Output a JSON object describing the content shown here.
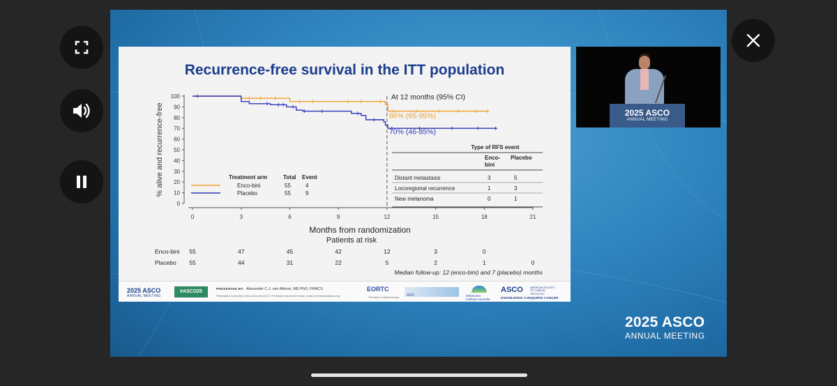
{
  "slide": {
    "title": "Recurrence-free survival in the ITT population",
    "footer": {
      "asco_year": "2025 ASCO",
      "asco_sub": "ANNUAL MEETING",
      "hashtag": "#ASCO25",
      "presented_by_label": "PRESENTED BY:",
      "presenter": "Alexander C.J. van Akkooi, MD PhD, FRACS",
      "note": "Presentation is property of the author and ASCO. Permission required for reuse; contact permissions@asco.org",
      "eortc": "EORTC",
      "eortc_sub": "The future of cancer therapy",
      "ado": "ADO",
      "mia_line1": "Melanoma",
      "mia_line2": "Institute Australia",
      "asco2": "ASCO",
      "asco2_side": "AMERICAN SOCIETY OF CLINICAL ONCOLOGY",
      "asco2_tag": "KNOWLEDGE CONQUERS CANCER"
    }
  },
  "chart_data": {
    "type": "line",
    "title": "Recurrence-free survival in the ITT population",
    "xlabel": "Months from randomization",
    "ylabel": "% alive and recurrence-free",
    "xlim": [
      0,
      21
    ],
    "ylim": [
      0,
      100
    ],
    "x_ticks": [
      0,
      3,
      6,
      9,
      12,
      15,
      18,
      21
    ],
    "y_ticks": [
      0,
      10,
      20,
      30,
      40,
      50,
      60,
      70,
      80,
      90,
      100
    ],
    "reference_line_x": 12,
    "series": [
      {
        "name": "Enco-bini",
        "color": "#f0a12b",
        "points": [
          [
            0,
            100
          ],
          [
            2.9,
            100
          ],
          [
            3,
            98
          ],
          [
            5.9,
            98
          ],
          [
            6,
            95
          ],
          [
            11.8,
            95
          ],
          [
            11.9,
            92
          ],
          [
            12.05,
            86
          ],
          [
            18.3,
            86
          ]
        ],
        "censor_x": [
          3.5,
          4.2,
          5.1,
          6.6,
          7.4,
          9.6,
          10.4,
          11.6,
          12.4,
          13.8,
          15.2,
          16.4,
          17.5,
          18.2
        ]
      },
      {
        "name": "Placebo",
        "color": "#2e36b8",
        "points": [
          [
            0,
            100
          ],
          [
            2.9,
            100
          ],
          [
            3,
            95
          ],
          [
            3.5,
            93
          ],
          [
            4.8,
            92
          ],
          [
            5.8,
            90
          ],
          [
            6.4,
            87
          ],
          [
            6.8,
            86
          ],
          [
            9.8,
            84
          ],
          [
            10.4,
            82
          ],
          [
            10.7,
            78
          ],
          [
            11.8,
            76
          ],
          [
            11.9,
            73
          ],
          [
            12.05,
            70
          ],
          [
            18.8,
            70
          ]
        ],
        "censor_x": [
          0.3,
          4.6,
          5.3,
          5.6,
          6.2,
          6.9,
          8.0,
          10.2,
          11.2,
          12.3,
          14.0,
          16.0,
          17.6,
          18.7
        ]
      }
    ],
    "annotations": {
      "heading": "At 12 months (95% CI)",
      "enco": "86% (65-95%)",
      "placebo": "70% (46-85%)"
    },
    "legend": {
      "headers": [
        "Treatment arm",
        "Total",
        "Event"
      ],
      "rows": [
        {
          "arm": "Enco-bini",
          "total": "55",
          "event": "4"
        },
        {
          "arm": "Placebo",
          "total": "55",
          "event": "9"
        }
      ]
    },
    "events_table": {
      "title": "Type of RFS event",
      "col1_a": "Enco-",
      "col1_b": "bini",
      "col2": "Placebo",
      "rows": [
        {
          "type": "Distant metastasis",
          "enco": "3",
          "placebo": "5"
        },
        {
          "type": "Locoregional recurrence",
          "enco": "1",
          "placebo": "3"
        },
        {
          "type": "New melanoma",
          "enco": "0",
          "placebo": "1"
        }
      ]
    },
    "at_risk": {
      "title": "Patients at risk",
      "rows": [
        {
          "label": "Enco-bini",
          "values": [
            "55",
            "47",
            "45",
            "42",
            "12",
            "3",
            "0",
            ""
          ]
        },
        {
          "label": "Placebo",
          "values": [
            "55",
            "44",
            "31",
            "22",
            "5",
            "2",
            "1",
            "0"
          ]
        }
      ]
    },
    "followup_note": "Median follow-up: 12 (enco-bini) and 7 (placebo) months"
  },
  "speaker": {
    "podium_year": "2025 ASCO",
    "podium_sub": "ANNUAL MEETING"
  },
  "corner": {
    "year": "2025 ASCO",
    "sub": "ANNUAL MEETING"
  },
  "controls": {
    "fullscreen_icon": "fullscreen-icon",
    "volume_icon": "volume-icon",
    "pause_icon": "pause-icon",
    "close_icon": "close-icon"
  }
}
